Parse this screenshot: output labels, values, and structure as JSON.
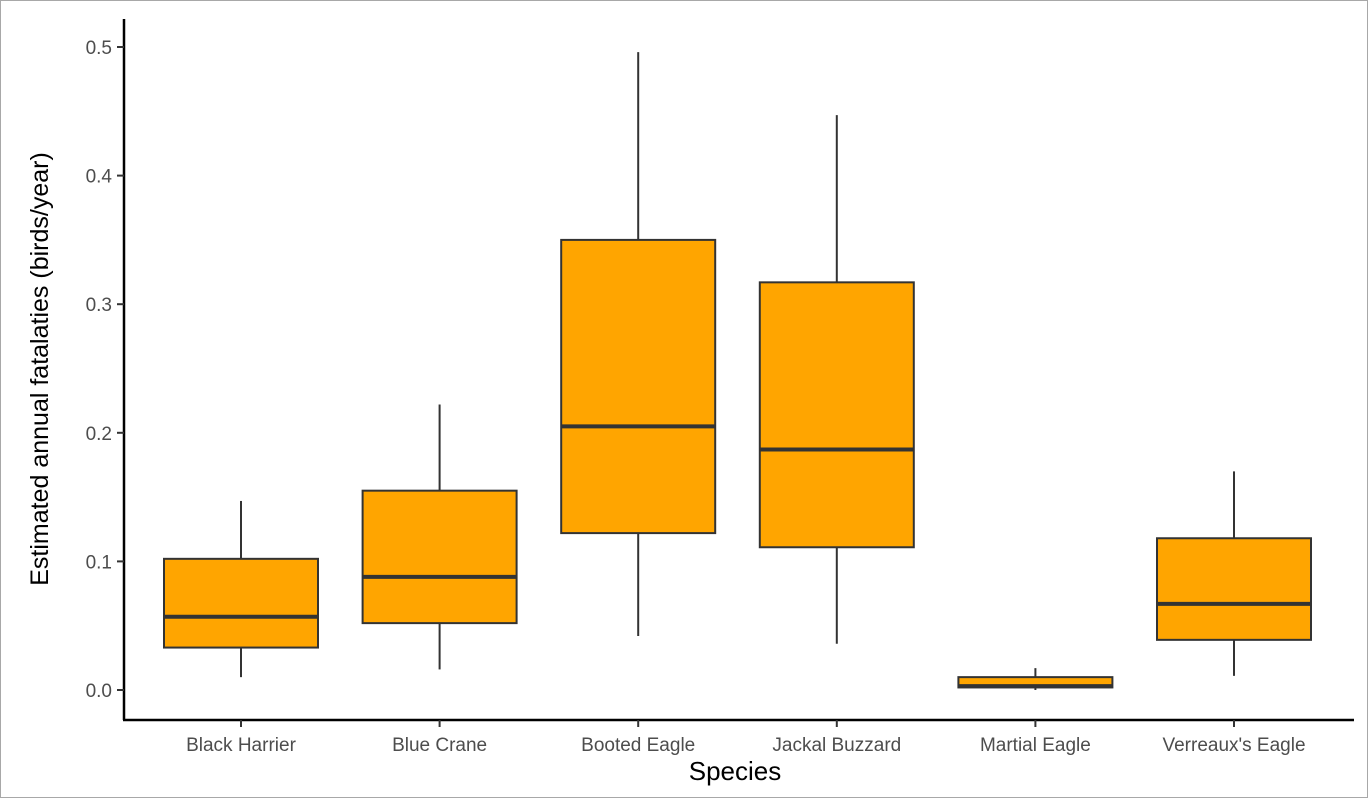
{
  "chart_data": {
    "type": "boxplot",
    "xlabel": "Species",
    "ylabel": "Estimated annual fatalaties (birds/year)",
    "categories": [
      "Black Harrier",
      "Blue Crane",
      "Booted Eagle",
      "Jackal Buzzard",
      "Martial Eagle",
      "Verreaux's Eagle"
    ],
    "boxes": [
      {
        "min": 0.01,
        "q1": 0.033,
        "median": 0.057,
        "q3": 0.102,
        "max": 0.147
      },
      {
        "min": 0.016,
        "q1": 0.052,
        "median": 0.088,
        "q3": 0.155,
        "max": 0.222
      },
      {
        "min": 0.042,
        "q1": 0.122,
        "median": 0.205,
        "q3": 0.35,
        "max": 0.496
      },
      {
        "min": 0.036,
        "q1": 0.111,
        "median": 0.187,
        "q3": 0.317,
        "max": 0.447
      },
      {
        "min": 0.0,
        "q1": 0.002,
        "median": 0.003,
        "q3": 0.01,
        "max": 0.017
      },
      {
        "min": 0.011,
        "q1": 0.039,
        "median": 0.067,
        "q3": 0.118,
        "max": 0.17
      }
    ],
    "ylim": [
      -0.025,
      0.525
    ],
    "yticks": [
      0.0,
      0.1,
      0.2,
      0.3,
      0.4,
      0.5
    ],
    "ytick_labels": [
      "0.0",
      "0.1",
      "0.2",
      "0.3",
      "0.4",
      "0.5"
    ],
    "grid": false,
    "legend": "none",
    "box_fill": "#FFA500",
    "line_color": "#333333"
  }
}
